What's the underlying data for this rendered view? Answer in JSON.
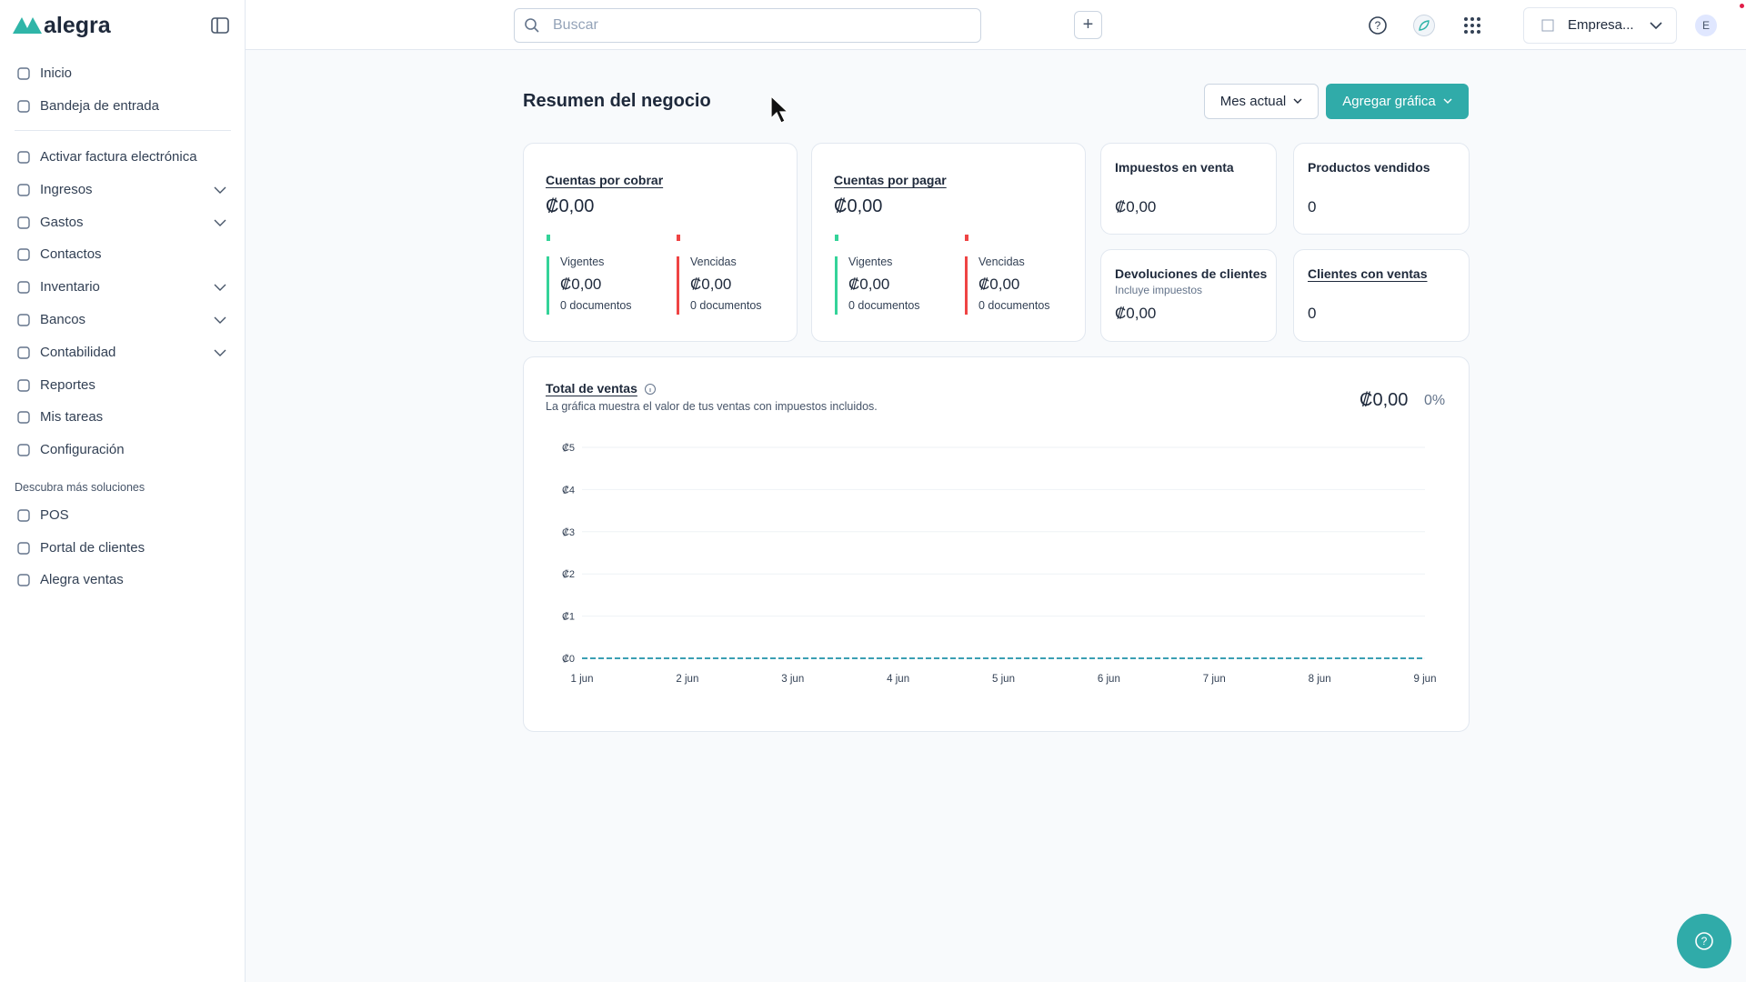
{
  "sidebar": {
    "logo": "alegra",
    "menu_top": [
      {
        "label": "Inicio"
      },
      {
        "label": "Bandeja de entrada"
      }
    ],
    "menu": [
      {
        "label": "Activar factura electrónica"
      },
      {
        "label": "Ingresos",
        "expandable": true
      },
      {
        "label": "Gastos",
        "expandable": true
      },
      {
        "label": "Contactos"
      },
      {
        "label": "Inventario",
        "expandable": true
      },
      {
        "label": "Bancos",
        "expandable": true
      },
      {
        "label": "Contabilidad",
        "expandable": true
      },
      {
        "label": "Reportes"
      },
      {
        "label": "Mis tareas"
      },
      {
        "label": "Configuración"
      }
    ],
    "section_title": "Descubra más soluciones",
    "solutions": [
      {
        "label": "POS"
      },
      {
        "label": "Portal de clientes"
      },
      {
        "label": "Alegra ventas"
      }
    ]
  },
  "topbar": {
    "search_placeholder": "Buscar",
    "company": "Empresa...",
    "avatar": "E"
  },
  "header": {
    "title": "Resumen del negocio",
    "period_button": "Mes actual",
    "add_chart_button": "Agregar gráfica"
  },
  "cards": {
    "receivables": {
      "title": "Cuentas por cobrar",
      "amount": "₡0,00",
      "current": {
        "label": "Vigentes",
        "amount": "₡0,00",
        "docs": "0 documentos"
      },
      "overdue": {
        "label": "Vencidas",
        "amount": "₡0,00",
        "docs": "0 documentos"
      }
    },
    "payables": {
      "title": "Cuentas por pagar",
      "amount": "₡0,00",
      "current": {
        "label": "Vigentes",
        "amount": "₡0,00",
        "docs": "0 documentos"
      },
      "overdue": {
        "label": "Vencidas",
        "amount": "₡0,00",
        "docs": "0 documentos"
      }
    },
    "sales_tax": {
      "title": "Impuestos en venta",
      "amount": "₡0,00"
    },
    "products_sold": {
      "title": "Productos vendidos",
      "value": 0
    },
    "returns": {
      "title": "Devoluciones de clientes",
      "subtitle": "Incluye impuestos",
      "amount": "₡0,00"
    },
    "customers": {
      "title": "Clientes con ventas",
      "value": 0
    }
  },
  "sales_chart": {
    "title": "Total de ventas",
    "subtitle": "La gráfica muestra el valor de tus ventas con impuestos incluidos.",
    "total": "₡0,00",
    "change": "0%",
    "chart_data": {
      "type": "line",
      "categories": [
        "1 jun",
        "2 jun",
        "3 jun",
        "4 jun",
        "5 jun",
        "6 jun",
        "7 jun",
        "8 jun",
        "9 jun"
      ],
      "values": [
        0,
        0,
        0,
        0,
        0,
        0,
        0,
        0,
        0
      ],
      "color": "#3a9fb3",
      "grid": true,
      "ylim": [
        0,
        5
      ],
      "yticks": [
        {
          "value": 0,
          "label": "₡0"
        },
        {
          "value": 1,
          "label": "₡1"
        },
        {
          "value": 2,
          "label": "₡2"
        },
        {
          "value": 3,
          "label": "₡3"
        },
        {
          "value": 4,
          "label": "₡4"
        },
        {
          "value": 5,
          "label": "₡5"
        }
      ]
    }
  }
}
